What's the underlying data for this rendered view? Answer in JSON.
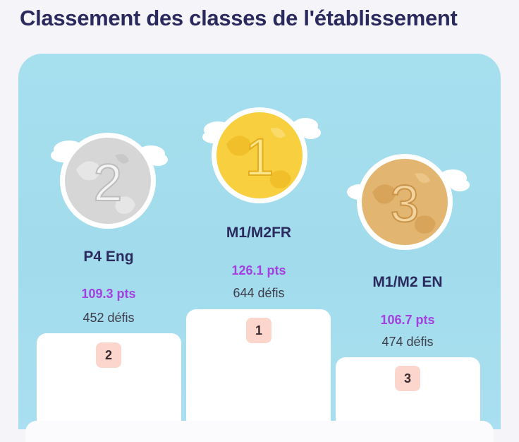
{
  "title": "Classement des classes de l'établissement",
  "colors": {
    "panel_bg": "#a6dfee",
    "points": "#a43fe0",
    "title": "#2b2a5e",
    "rank_badge_bg": "#fcd5cd",
    "gold": "#f5cc3b",
    "silver": "#d9d9d9",
    "bronze": "#e0b36f"
  },
  "podium": [
    {
      "rank": "1",
      "class_name": "M1/M2FR",
      "points": "126.1 pts",
      "challenges": "644 défis",
      "medal_icon": "gold-medal-icon",
      "rank_badge": "1"
    },
    {
      "rank": "2",
      "class_name": "P4 Eng",
      "points": "109.3 pts",
      "challenges": "452 défis",
      "medal_icon": "silver-medal-icon",
      "rank_badge": "2"
    },
    {
      "rank": "3",
      "class_name": "M1/M2 EN",
      "points": "106.7 pts",
      "challenges": "474 défis",
      "medal_icon": "bronze-medal-icon",
      "rank_badge": "3"
    }
  ]
}
